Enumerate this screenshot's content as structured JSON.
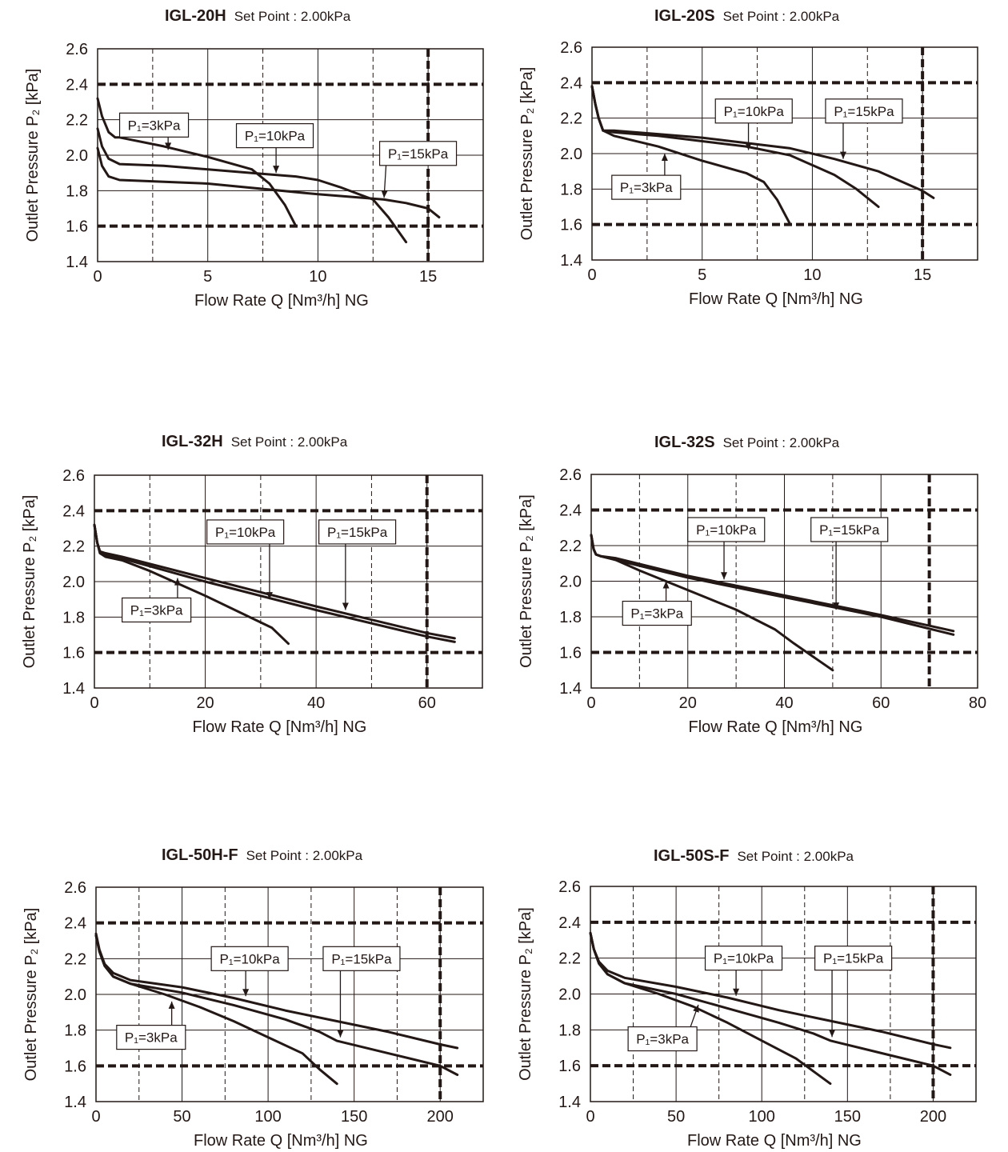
{
  "chart_data": [
    {
      "type": "line",
      "model": "IGL-20H",
      "set_point": "Set Point : 2.00kPa",
      "xlabel": "Flow Rate Q [Nm³/h] NG",
      "ylabel": "Outlet Pressure P₂ [kPa]",
      "xlim": [
        0,
        17.5
      ],
      "ylim": [
        1.4,
        2.6
      ],
      "xticks": [
        0,
        5,
        10,
        15
      ],
      "yticks": [
        1.4,
        1.6,
        1.8,
        2.0,
        2.2,
        2.4,
        2.6
      ],
      "minor_x_dashed": [
        2.5,
        7.5,
        12.5
      ],
      "limit_lines": {
        "y": [
          2.4,
          1.6
        ],
        "x": 15
      },
      "series": [
        {
          "name": "P₁=3kPa",
          "x": [
            0,
            0.2,
            0.5,
            0.8,
            1,
            3,
            5,
            7,
            7.8,
            8.5,
            9
          ],
          "y": [
            2.32,
            2.22,
            2.13,
            2.1,
            2.1,
            2.05,
            1.99,
            1.92,
            1.84,
            1.72,
            1.6
          ]
        },
        {
          "name": "P₁=10kPa",
          "x": [
            0,
            0.2,
            0.5,
            1,
            3,
            7,
            9,
            10,
            11,
            12.5,
            13.2,
            14
          ],
          "y": [
            2.15,
            2.05,
            1.98,
            1.95,
            1.94,
            1.9,
            1.88,
            1.86,
            1.82,
            1.75,
            1.65,
            1.51
          ]
        },
        {
          "name": "P₁=15kPa",
          "x": [
            0,
            0.2,
            0.5,
            1,
            5,
            10,
            13,
            14,
            15,
            15.5
          ],
          "y": [
            2.04,
            1.94,
            1.88,
            1.86,
            1.84,
            1.78,
            1.75,
            1.73,
            1.7,
            1.65
          ]
        }
      ],
      "annotations": [
        {
          "text": "P₁=3kPa",
          "box": [
            1,
            2.17
          ],
          "arrow": [
            3.2,
            2.03
          ]
        },
        {
          "text": "P₁=10kPa",
          "box": [
            6.3,
            2.11
          ],
          "arrow": [
            8.1,
            1.9
          ]
        },
        {
          "text": "P₁=15kPa",
          "box": [
            12.8,
            2.01
          ],
          "arrow": [
            13.0,
            1.76
          ]
        }
      ]
    },
    {
      "type": "line",
      "model": "IGL-20S",
      "set_point": "Set Point : 2.00kPa",
      "xlabel": "Flow Rate Q [Nm³/h] NG",
      "ylabel": "Outlet Pressure P₂ [kPa]",
      "xlim": [
        0,
        17.5
      ],
      "ylim": [
        1.4,
        2.6
      ],
      "xticks": [
        0,
        5,
        10,
        15
      ],
      "yticks": [
        1.4,
        1.6,
        1.8,
        2.0,
        2.2,
        2.4,
        2.6
      ],
      "minor_x_dashed": [
        2.5,
        7.5,
        12.5
      ],
      "limit_lines": {
        "y": [
          2.4,
          1.6
        ],
        "x": 15
      },
      "series": [
        {
          "name": "P₁=3kPa",
          "x": [
            0,
            0.15,
            0.3,
            0.5,
            1,
            3,
            5,
            7,
            7.8,
            8.4,
            9
          ],
          "y": [
            2.38,
            2.28,
            2.2,
            2.13,
            2.1,
            2.04,
            1.96,
            1.89,
            1.84,
            1.74,
            1.6
          ]
        },
        {
          "name": "P₁=10kPa",
          "x": [
            0,
            0.15,
            0.3,
            0.5,
            1,
            3,
            5,
            7,
            9,
            11,
            12,
            13
          ],
          "y": [
            2.38,
            2.28,
            2.2,
            2.13,
            2.12,
            2.1,
            2.07,
            2.04,
            1.99,
            1.88,
            1.8,
            1.7
          ]
        },
        {
          "name": "P₁=15kPa",
          "x": [
            0,
            0.15,
            0.3,
            0.5,
            1,
            3,
            5,
            7,
            9,
            11,
            13,
            15,
            15.5
          ],
          "y": [
            2.38,
            2.28,
            2.2,
            2.13,
            2.13,
            2.11,
            2.09,
            2.06,
            2.03,
            1.97,
            1.9,
            1.79,
            1.75
          ]
        }
      ],
      "annotations": [
        {
          "text": "P₁=3kPa",
          "box": [
            0.9,
            1.81
          ],
          "arrow": [
            3.3,
            2.0
          ]
        },
        {
          "text": "P₁=10kPa",
          "box": [
            5.6,
            2.24
          ],
          "arrow": [
            7.1,
            2.02
          ]
        },
        {
          "text": "P₁=15kPa",
          "box": [
            10.6,
            2.24
          ],
          "arrow": [
            11.4,
            1.97
          ]
        }
      ]
    },
    {
      "type": "line",
      "model": "IGL-32H",
      "set_point": "Set Point : 2.00kPa",
      "xlabel": "Flow Rate Q [Nm³/h] NG",
      "ylabel": "Outlet Pressure P₂ [kPa]",
      "xlim": [
        0,
        70
      ],
      "ylim": [
        1.4,
        2.6
      ],
      "xticks": [
        0,
        20,
        40,
        60
      ],
      "yticks": [
        1.4,
        1.6,
        1.8,
        2.0,
        2.2,
        2.4,
        2.6
      ],
      "minor_x_dashed": [
        10,
        30,
        50
      ],
      "limit_lines": {
        "y": [
          2.4,
          1.6
        ],
        "x": 60
      },
      "series": [
        {
          "name": "P₁=3kPa",
          "x": [
            0,
            0.5,
            1,
            2,
            5,
            10,
            20,
            30,
            32,
            35
          ],
          "y": [
            2.32,
            2.22,
            2.16,
            2.14,
            2.12,
            2.06,
            1.92,
            1.77,
            1.74,
            1.65
          ]
        },
        {
          "name": "P₁=10kPa",
          "x": [
            0,
            0.5,
            1,
            2,
            5,
            20,
            40,
            60,
            65
          ],
          "y": [
            2.32,
            2.22,
            2.17,
            2.15,
            2.13,
            2.0,
            1.84,
            1.69,
            1.66
          ]
        },
        {
          "name": "P₁=15kPa",
          "x": [
            0,
            0.5,
            1,
            2,
            5,
            20,
            40,
            60,
            65
          ],
          "y": [
            2.32,
            2.22,
            2.17,
            2.16,
            2.14,
            2.02,
            1.86,
            1.71,
            1.68
          ]
        }
      ],
      "annotations": [
        {
          "text": "P₁=3kPa",
          "box": [
            5,
            1.84
          ],
          "arrow": [
            15,
            2.02
          ]
        },
        {
          "text": "P₁=10kPa",
          "box": [
            20.3,
            2.28
          ],
          "arrow": [
            31.6,
            1.9
          ]
        },
        {
          "text": "P₁=15kPa",
          "box": [
            40.5,
            2.28
          ],
          "arrow": [
            45.3,
            1.84
          ]
        }
      ]
    },
    {
      "type": "line",
      "model": "IGL-32S",
      "set_point": "Set Point : 2.00kPa",
      "xlabel": "Flow Rate Q [Nm³/h] NG",
      "ylabel": "Outlet Pressure P₂ [kPa]",
      "xlim": [
        0,
        80
      ],
      "ylim": [
        1.4,
        2.6
      ],
      "xticks": [
        0,
        20,
        40,
        60,
        80
      ],
      "yticks": [
        1.4,
        1.6,
        1.8,
        2.0,
        2.2,
        2.4,
        2.6
      ],
      "minor_x_dashed": [
        10,
        30,
        50
      ],
      "limit_lines": {
        "y": [
          2.4,
          1.6
        ],
        "x": 70
      },
      "series": [
        {
          "name": "P₁=3kPa",
          "x": [
            0,
            0.5,
            1,
            2,
            5,
            10,
            20,
            30,
            38,
            42,
            50
          ],
          "y": [
            2.26,
            2.18,
            2.15,
            2.14,
            2.12,
            2.06,
            1.95,
            1.84,
            1.73,
            1.65,
            1.5
          ]
        },
        {
          "name": "P₁=10kPa",
          "x": [
            0,
            0.5,
            1,
            2,
            5,
            20,
            40,
            60,
            75
          ],
          "y": [
            2.26,
            2.18,
            2.15,
            2.14,
            2.12,
            2.02,
            1.91,
            1.8,
            1.7
          ]
        },
        {
          "name": "P₁=15kPa",
          "x": [
            0,
            0.5,
            1,
            2,
            5,
            20,
            40,
            60,
            75
          ],
          "y": [
            2.26,
            2.18,
            2.15,
            2.14,
            2.13,
            2.03,
            1.92,
            1.81,
            1.72
          ]
        }
      ],
      "annotations": [
        {
          "text": "P₁=3kPa",
          "box": [
            6.5,
            1.82
          ],
          "arrow": [
            15.5,
            2.0
          ]
        },
        {
          "text": "P₁=10kPa",
          "box": [
            20,
            2.29
          ],
          "arrow": [
            27.5,
            2.01
          ]
        },
        {
          "text": "P₁=15kPa",
          "box": [
            45.5,
            2.29
          ],
          "arrow": [
            50.7,
            1.84
          ]
        }
      ]
    },
    {
      "type": "line",
      "model": "IGL-50H-F",
      "set_point": "Set Point : 2.00kPa",
      "xlabel": "Flow Rate Q [Nm³/h] NG",
      "ylabel": "Outlet Pressure P₂ [kPa]",
      "xlim": [
        0,
        225
      ],
      "ylim": [
        1.4,
        2.6
      ],
      "xticks": [
        0,
        50,
        100,
        150,
        200
      ],
      "yticks": [
        1.4,
        1.6,
        1.8,
        2.0,
        2.2,
        2.4,
        2.6
      ],
      "minor_x_dashed": [
        25,
        75,
        125,
        175
      ],
      "limit_lines": {
        "y": [
          2.4,
          1.6
        ],
        "x": 200
      },
      "series": [
        {
          "name": "P₁=3kPa",
          "x": [
            0,
            2,
            5,
            10,
            20,
            40,
            60,
            80,
            100,
            120,
            130,
            140
          ],
          "y": [
            2.33,
            2.24,
            2.16,
            2.1,
            2.06,
            2.0,
            1.93,
            1.85,
            1.76,
            1.67,
            1.58,
            1.5
          ]
        },
        {
          "name": "P₁=10kPa",
          "x": [
            0,
            2,
            5,
            10,
            20,
            50,
            80,
            110,
            130,
            140,
            170,
            200,
            210
          ],
          "y": [
            2.33,
            2.24,
            2.16,
            2.1,
            2.06,
            2.01,
            1.94,
            1.86,
            1.79,
            1.74,
            1.67,
            1.6,
            1.55
          ]
        },
        {
          "name": "P₁=15kPa",
          "x": [
            0,
            2,
            5,
            10,
            20,
            50,
            80,
            110,
            140,
            170,
            200,
            210
          ],
          "y": [
            2.34,
            2.25,
            2.17,
            2.12,
            2.08,
            2.04,
            1.98,
            1.91,
            1.85,
            1.79,
            1.72,
            1.7
          ]
        }
      ],
      "annotations": [
        {
          "text": "P₁=3kPa",
          "box": [
            12,
            1.76
          ],
          "arrow": [
            44,
            1.96
          ]
        },
        {
          "text": "P₁=10kPa",
          "box": [
            67,
            2.2
          ],
          "arrow": [
            87,
            1.99
          ]
        },
        {
          "text": "P₁=15kPa",
          "box": [
            132,
            2.2
          ],
          "arrow": [
            142,
            1.76
          ]
        }
      ]
    },
    {
      "type": "line",
      "model": "IGL-50S-F",
      "set_point": "Set Point : 2.00kPa",
      "xlabel": "Flow Rate Q [Nm³/h] NG",
      "ylabel": "Outlet Pressure P₂ [kPa]",
      "xlim": [
        0,
        225
      ],
      "ylim": [
        1.4,
        2.6
      ],
      "xticks": [
        0,
        50,
        100,
        150,
        200
      ],
      "yticks": [
        1.4,
        1.6,
        1.8,
        2.0,
        2.2,
        2.4,
        2.6
      ],
      "minor_x_dashed": [
        25,
        75,
        125,
        175
      ],
      "limit_lines": {
        "y": [
          2.4,
          1.6
        ],
        "x": 200
      },
      "series": [
        {
          "name": "P₁=3kPa",
          "x": [
            0,
            2,
            5,
            10,
            20,
            40,
            60,
            80,
            100,
            120,
            130,
            140
          ],
          "y": [
            2.34,
            2.25,
            2.17,
            2.11,
            2.06,
            2.0,
            1.93,
            1.84,
            1.74,
            1.64,
            1.57,
            1.5
          ]
        },
        {
          "name": "P₁=10kPa",
          "x": [
            0,
            2,
            5,
            10,
            20,
            50,
            80,
            110,
            130,
            140,
            170,
            200,
            210
          ],
          "y": [
            2.34,
            2.25,
            2.17,
            2.11,
            2.06,
            2.0,
            1.92,
            1.84,
            1.78,
            1.74,
            1.67,
            1.6,
            1.55
          ]
        },
        {
          "name": "P₁=15kPa",
          "x": [
            0,
            2,
            5,
            10,
            20,
            50,
            80,
            110,
            140,
            170,
            200,
            210
          ],
          "y": [
            2.34,
            2.25,
            2.18,
            2.13,
            2.09,
            2.04,
            1.98,
            1.91,
            1.85,
            1.79,
            1.72,
            1.7
          ]
        }
      ],
      "annotations": [
        {
          "text": "P₁=3kPa",
          "box": [
            22,
            1.75
          ],
          "arrow": [
            63,
            1.94
          ]
        },
        {
          "text": "P₁=10kPa",
          "box": [
            67,
            2.2
          ],
          "arrow": [
            85,
            1.99
          ]
        },
        {
          "text": "P₁=15kPa",
          "box": [
            131,
            2.2
          ],
          "arrow": [
            141,
            1.76
          ]
        }
      ]
    }
  ]
}
